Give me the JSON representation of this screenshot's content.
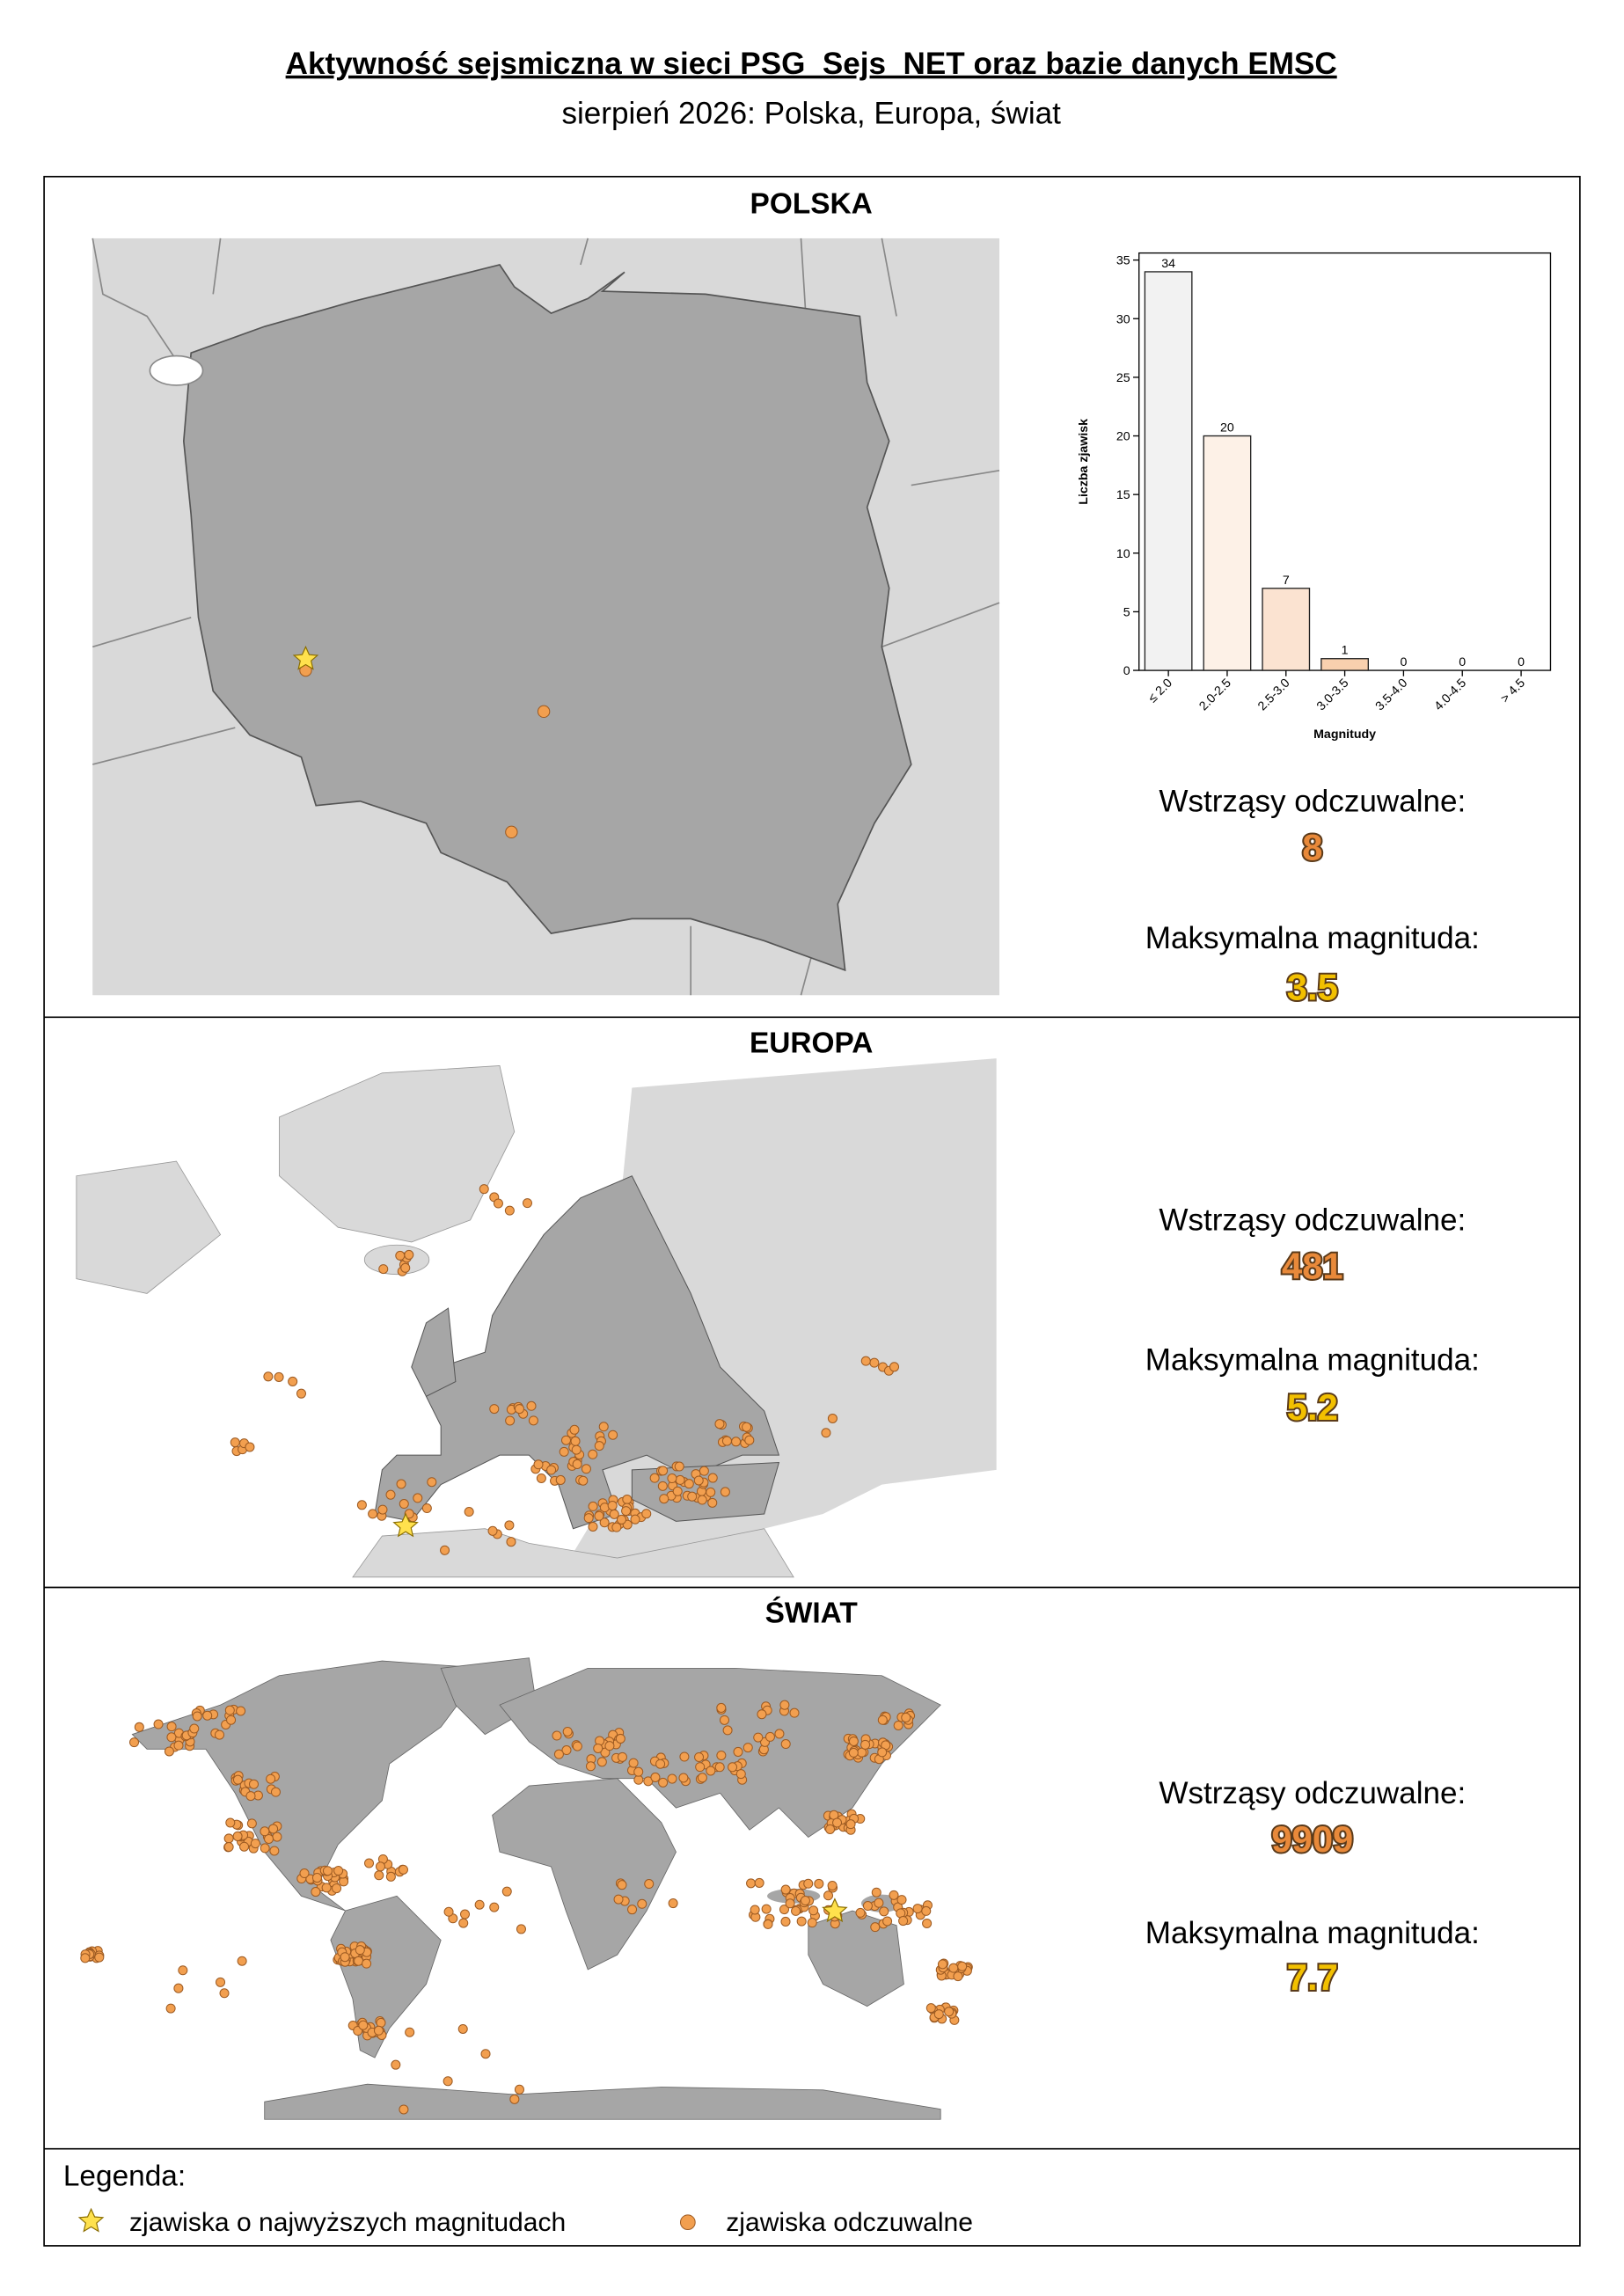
{
  "header": {
    "title": "Aktywność sejsmiczna w sieci PSG_Sejs_NET oraz bazie danych EMSC",
    "subtitle": "sierpień 2026: Polska, Europa, świat"
  },
  "sections": [
    {
      "title": "POLSKA",
      "felt_label": "Wstrząsy odczuwalne:",
      "felt": 8,
      "max_label": "Maksymalna magnituda:",
      "max": 3.5
    },
    {
      "title": "EUROPA",
      "felt_label": "Wstrząsy odczuwalne:",
      "felt": 481,
      "max_label": "Maksymalna magnituda:",
      "max": 5.2
    },
    {
      "title": "ŚWIAT",
      "felt_label": "Wstrząsy odczuwalne:",
      "felt": 9909,
      "max_label": "Maksymalna magnituda:",
      "max": 7.7
    }
  ],
  "chart_data": {
    "type": "bar",
    "categories": [
      "≤ 2.0",
      "2.0-2.5",
      "2.5-3.0",
      "3.0-3.5",
      "3.5-4.0",
      "4.0-4.5",
      "> 4.5"
    ],
    "values": [
      34,
      20,
      7,
      1,
      0,
      0,
      0
    ],
    "colors": [
      "#f2f2f2",
      "#fdf1e7",
      "#fbe3d1",
      "#f8d0ae",
      "#f6c195",
      "#f3b27c",
      "#f0a363"
    ],
    "ylim": [
      0,
      35.6
    ],
    "yticks": [
      0,
      5,
      10,
      15,
      20,
      25,
      30,
      35
    ],
    "xlabel": "Magnitudy",
    "ylabel": "Liczba zjawisk"
  },
  "legend": {
    "title": "Legenda:",
    "items": [
      "zjawiska o najwyższych magnitudach",
      "zjawiska odczuwalne"
    ]
  }
}
